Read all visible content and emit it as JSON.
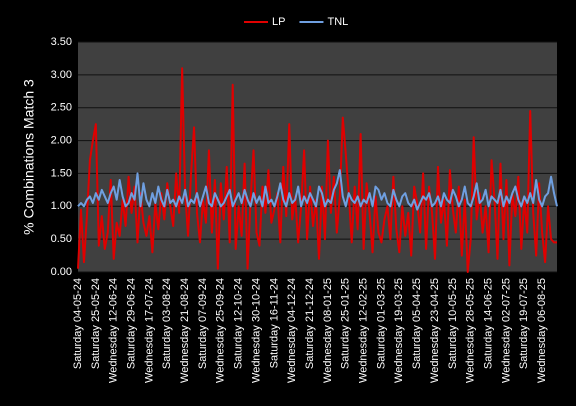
{
  "chart_data": {
    "type": "line",
    "y_label": "% Combinations Match 3",
    "categories": [
      "Saturday 04-05-24",
      null,
      null,
      null,
      null,
      null,
      "Saturday 25-05-24",
      null,
      null,
      null,
      null,
      null,
      "Wednesday 12-06-24",
      null,
      null,
      null,
      null,
      null,
      "Saturday 29-06-24",
      null,
      null,
      null,
      null,
      null,
      "Wednesday 17-07-24",
      null,
      null,
      null,
      null,
      null,
      "Saturday 03-08-24",
      null,
      null,
      null,
      null,
      null,
      "Wednesday 21-08-24",
      null,
      null,
      null,
      null,
      null,
      "Saturday 07-09-24",
      null,
      null,
      null,
      null,
      null,
      "Wednesday 25-09-24",
      null,
      null,
      null,
      null,
      null,
      "Saturday 12-10-24",
      null,
      null,
      null,
      null,
      null,
      "Wednesday 30-10-24",
      null,
      null,
      null,
      null,
      null,
      "Saturday 16-11-24",
      null,
      null,
      null,
      null,
      null,
      "Wednesday 04-12-24",
      null,
      null,
      null,
      null,
      null,
      "Saturday 21-12-24",
      null,
      null,
      null,
      null,
      null,
      "Wednesday 08-01-25",
      null,
      null,
      null,
      null,
      null,
      "Saturday 25-01-25",
      null,
      null,
      null,
      null,
      null,
      "Wednesday 12-02-25",
      null,
      null,
      null,
      null,
      null,
      "Saturday 01-03-25",
      null,
      null,
      null,
      null,
      null,
      "Wednesday 19-03-25",
      null,
      null,
      null,
      null,
      null,
      "Saturday 05-04-25",
      null,
      null,
      null,
      null,
      null,
      "Wednesday 23-04-25",
      null,
      null,
      null,
      null,
      null,
      "Saturday 10-05-25",
      null,
      null,
      null,
      null,
      null,
      "Wednesday 28-05-25",
      null,
      null,
      null,
      null,
      null,
      "Saturday 14-06-25",
      null,
      null,
      null,
      null,
      null,
      "Wednesday 02-07-25",
      null,
      null,
      null,
      null,
      null,
      "Saturday 19-07-25",
      null,
      null,
      null,
      null,
      null,
      "Wednesday 06-08-25",
      null,
      null,
      null,
      null,
      null
    ],
    "series": [
      {
        "name": "LP",
        "color": "#e00000",
        "values": [
          0.05,
          0.95,
          0.15,
          0.85,
          1.7,
          2.0,
          2.25,
          0.4,
          0.85,
          0.35,
          0.6,
          1.4,
          0.2,
          0.75,
          0.55,
          1.1,
          0.7,
          1.45,
          0.9,
          1.3,
          0.45,
          1.2,
          0.75,
          0.55,
          0.85,
          0.3,
          1.05,
          0.65,
          1.2,
          0.8,
          1.35,
          1.0,
          0.7,
          1.5,
          0.9,
          3.1,
          1.2,
          0.55,
          1.5,
          2.2,
          0.9,
          0.45,
          1.1,
          0.75,
          1.85,
          0.6,
          1.4,
          0.05,
          1.35,
          0.8,
          1.6,
          0.45,
          2.85,
          0.35,
          1.0,
          0.55,
          1.65,
          0.05,
          1.1,
          1.85,
          0.6,
          0.4,
          1.3,
          0.9,
          1.55,
          0.75,
          0.95,
          1.2,
          0.45,
          1.6,
          0.85,
          2.25,
          0.8,
          1.15,
          0.45,
          1.0,
          1.85,
          0.5,
          1.3,
          0.7,
          1.1,
          0.2,
          1.3,
          0.5,
          2.0,
          0.9,
          1.45,
          0.6,
          1.15,
          2.35,
          1.8,
          1.2,
          0.45,
          1.3,
          0.65,
          2.1,
          0.35,
          1.35,
          0.9,
          0.3,
          1.15,
          0.6,
          0.45,
          0.8,
          1.0,
          0.5,
          1.45,
          0.65,
          0.3,
          1.0,
          0.55,
          0.9,
          0.25,
          1.3,
          1.05,
          0.6,
          1.5,
          0.35,
          1.3,
          0.9,
          0.2,
          1.6,
          0.75,
          1.1,
          0.4,
          1.55,
          0.95,
          0.6,
          1.3,
          0.25,
          1.1,
          0.0,
          0.5,
          2.05,
          0.8,
          1.2,
          0.6,
          1.0,
          0.3,
          1.7,
          1.1,
          0.2,
          1.65,
          0.5,
          1.4,
          0.1,
          1.2,
          0.85,
          1.45,
          0.35,
          1.1,
          0.6,
          2.45,
          0.9,
          0.25,
          1.35,
          0.6,
          0.15,
          1.0,
          0.5,
          0.45,
          0.45
        ]
      },
      {
        "name": "TNL",
        "color": "#6f9fe0",
        "values": [
          1.0,
          1.05,
          1.0,
          1.1,
          1.15,
          1.05,
          1.2,
          1.1,
          1.25,
          1.15,
          1.05,
          1.2,
          1.3,
          1.1,
          1.4,
          1.15,
          1.0,
          1.05,
          1.2,
          1.1,
          1.5,
          1.0,
          1.35,
          1.1,
          1.0,
          1.2,
          1.05,
          1.3,
          1.1,
          1.0,
          1.25,
          1.05,
          1.1,
          1.0,
          1.15,
          1.05,
          1.25,
          1.0,
          1.1,
          1.05,
          1.2,
          1.0,
          1.15,
          1.3,
          1.05,
          1.0,
          1.2,
          1.1,
          1.0,
          1.05,
          1.15,
          1.25,
          1.0,
          1.1,
          1.2,
          1.05,
          1.25,
          1.1,
          1.0,
          1.2,
          1.05,
          1.15,
          1.0,
          1.3,
          1.05,
          1.1,
          1.0,
          1.15,
          1.35,
          1.1,
          1.0,
          1.2,
          1.05,
          1.1,
          1.3,
          1.0,
          1.15,
          1.05,
          1.2,
          1.1,
          1.0,
          1.3,
          1.2,
          1.0,
          1.1,
          1.05,
          1.25,
          1.35,
          1.55,
          1.15,
          1.0,
          1.2,
          1.1,
          1.05,
          1.15,
          1.0,
          1.1,
          1.05,
          1.2,
          1.0,
          1.3,
          1.25,
          1.1,
          1.2,
          1.05,
          1.0,
          1.25,
          1.1,
          1.0,
          1.15,
          1.2,
          1.05,
          1.0,
          1.1,
          0.95,
          1.05,
          1.15,
          1.1,
          1.2,
          1.0,
          1.05,
          1.15,
          1.0,
          1.2,
          1.1,
          1.05,
          1.25,
          1.15,
          1.0,
          1.1,
          1.3,
          1.05,
          1.0,
          1.15,
          1.35,
          1.05,
          1.1,
          1.25,
          1.0,
          1.15,
          1.1,
          1.05,
          1.25,
          1.0,
          1.15,
          1.05,
          1.2,
          1.3,
          1.1,
          1.0,
          1.15,
          1.05,
          1.2,
          1.05,
          1.4,
          1.1,
          1.0,
          1.15,
          1.2,
          1.45,
          1.2,
          1.0
        ]
      }
    ],
    "ylim": [
      0,
      3.5
    ],
    "yticks": [
      {
        "value": 0,
        "label": "0.00"
      },
      {
        "value": 0.5,
        "label": "0.50"
      },
      {
        "value": 1,
        "label": "1.00"
      },
      {
        "value": 1.5,
        "label": "1.50"
      },
      {
        "value": 2,
        "label": "2.00"
      },
      {
        "value": 2.5,
        "label": "2.50"
      },
      {
        "value": 3,
        "label": "3.00"
      },
      {
        "value": 3.5,
        "label": "3.50"
      }
    ],
    "grid": true,
    "legend": "top"
  }
}
